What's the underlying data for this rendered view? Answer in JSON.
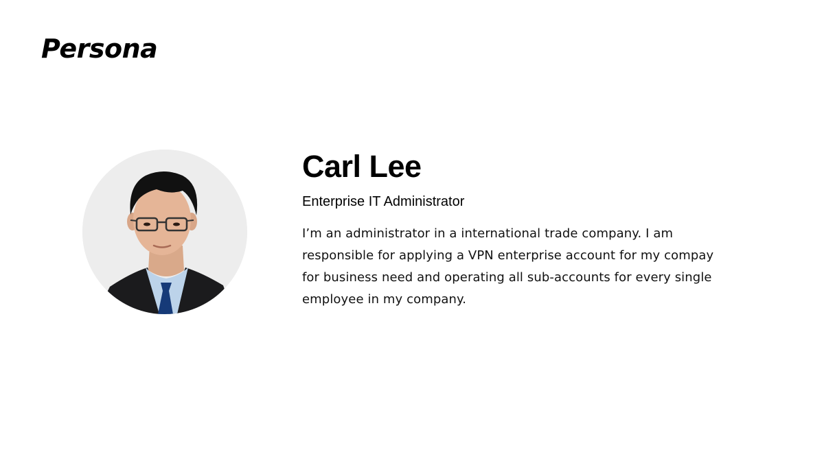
{
  "page": {
    "title": "Persona"
  },
  "persona": {
    "name": "Carl Lee",
    "role": "Enterprise IT Administrator",
    "bio": "I’m an administrator in a international trade company. I am responsible for applying a VPN enterprise account for my compay for business need and operating all sub-accounts for every single employee in my company."
  },
  "colors": {
    "background": "#ffffff",
    "text": "#000000",
    "avatar_bg": "#ededed"
  }
}
